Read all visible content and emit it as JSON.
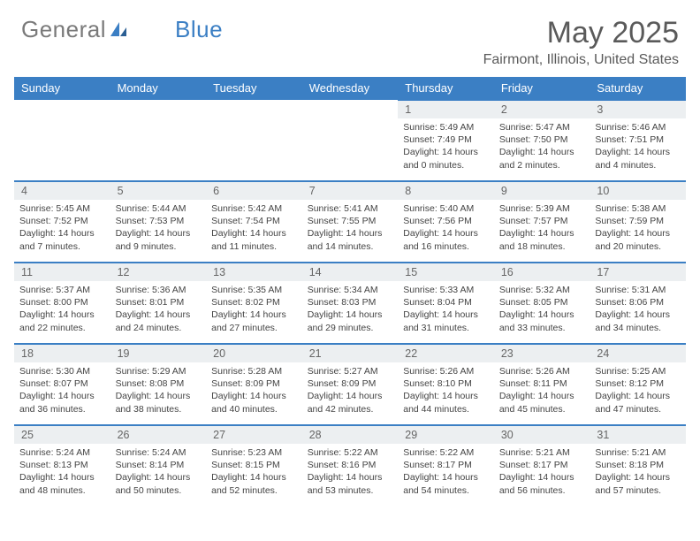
{
  "brand": {
    "name_a": "General",
    "name_b": "Blue"
  },
  "title": "May 2025",
  "location": "Fairmont, Illinois, United States",
  "colors": {
    "header_bg": "#3b7fc4",
    "header_text": "#ffffff",
    "daynum_bg": "#eceff1",
    "border": "#3b7fc4",
    "text": "#444444",
    "brand_gray": "#7a7a7a",
    "brand_blue": "#3b7fc4"
  },
  "weekdays": [
    "Sunday",
    "Monday",
    "Tuesday",
    "Wednesday",
    "Thursday",
    "Friday",
    "Saturday"
  ],
  "first_weekday_index": 4,
  "days": [
    {
      "n": 1,
      "sr": "5:49 AM",
      "ss": "7:49 PM",
      "dl": "14 hours and 0 minutes."
    },
    {
      "n": 2,
      "sr": "5:47 AM",
      "ss": "7:50 PM",
      "dl": "14 hours and 2 minutes."
    },
    {
      "n": 3,
      "sr": "5:46 AM",
      "ss": "7:51 PM",
      "dl": "14 hours and 4 minutes."
    },
    {
      "n": 4,
      "sr": "5:45 AM",
      "ss": "7:52 PM",
      "dl": "14 hours and 7 minutes."
    },
    {
      "n": 5,
      "sr": "5:44 AM",
      "ss": "7:53 PM",
      "dl": "14 hours and 9 minutes."
    },
    {
      "n": 6,
      "sr": "5:42 AM",
      "ss": "7:54 PM",
      "dl": "14 hours and 11 minutes."
    },
    {
      "n": 7,
      "sr": "5:41 AM",
      "ss": "7:55 PM",
      "dl": "14 hours and 14 minutes."
    },
    {
      "n": 8,
      "sr": "5:40 AM",
      "ss": "7:56 PM",
      "dl": "14 hours and 16 minutes."
    },
    {
      "n": 9,
      "sr": "5:39 AM",
      "ss": "7:57 PM",
      "dl": "14 hours and 18 minutes."
    },
    {
      "n": 10,
      "sr": "5:38 AM",
      "ss": "7:59 PM",
      "dl": "14 hours and 20 minutes."
    },
    {
      "n": 11,
      "sr": "5:37 AM",
      "ss": "8:00 PM",
      "dl": "14 hours and 22 minutes."
    },
    {
      "n": 12,
      "sr": "5:36 AM",
      "ss": "8:01 PM",
      "dl": "14 hours and 24 minutes."
    },
    {
      "n": 13,
      "sr": "5:35 AM",
      "ss": "8:02 PM",
      "dl": "14 hours and 27 minutes."
    },
    {
      "n": 14,
      "sr": "5:34 AM",
      "ss": "8:03 PM",
      "dl": "14 hours and 29 minutes."
    },
    {
      "n": 15,
      "sr": "5:33 AM",
      "ss": "8:04 PM",
      "dl": "14 hours and 31 minutes."
    },
    {
      "n": 16,
      "sr": "5:32 AM",
      "ss": "8:05 PM",
      "dl": "14 hours and 33 minutes."
    },
    {
      "n": 17,
      "sr": "5:31 AM",
      "ss": "8:06 PM",
      "dl": "14 hours and 34 minutes."
    },
    {
      "n": 18,
      "sr": "5:30 AM",
      "ss": "8:07 PM",
      "dl": "14 hours and 36 minutes."
    },
    {
      "n": 19,
      "sr": "5:29 AM",
      "ss": "8:08 PM",
      "dl": "14 hours and 38 minutes."
    },
    {
      "n": 20,
      "sr": "5:28 AM",
      "ss": "8:09 PM",
      "dl": "14 hours and 40 minutes."
    },
    {
      "n": 21,
      "sr": "5:27 AM",
      "ss": "8:09 PM",
      "dl": "14 hours and 42 minutes."
    },
    {
      "n": 22,
      "sr": "5:26 AM",
      "ss": "8:10 PM",
      "dl": "14 hours and 44 minutes."
    },
    {
      "n": 23,
      "sr": "5:26 AM",
      "ss": "8:11 PM",
      "dl": "14 hours and 45 minutes."
    },
    {
      "n": 24,
      "sr": "5:25 AM",
      "ss": "8:12 PM",
      "dl": "14 hours and 47 minutes."
    },
    {
      "n": 25,
      "sr": "5:24 AM",
      "ss": "8:13 PM",
      "dl": "14 hours and 48 minutes."
    },
    {
      "n": 26,
      "sr": "5:24 AM",
      "ss": "8:14 PM",
      "dl": "14 hours and 50 minutes."
    },
    {
      "n": 27,
      "sr": "5:23 AM",
      "ss": "8:15 PM",
      "dl": "14 hours and 52 minutes."
    },
    {
      "n": 28,
      "sr": "5:22 AM",
      "ss": "8:16 PM",
      "dl": "14 hours and 53 minutes."
    },
    {
      "n": 29,
      "sr": "5:22 AM",
      "ss": "8:17 PM",
      "dl": "14 hours and 54 minutes."
    },
    {
      "n": 30,
      "sr": "5:21 AM",
      "ss": "8:17 PM",
      "dl": "14 hours and 56 minutes."
    },
    {
      "n": 31,
      "sr": "5:21 AM",
      "ss": "8:18 PM",
      "dl": "14 hours and 57 minutes."
    }
  ],
  "labels": {
    "sunrise": "Sunrise:",
    "sunset": "Sunset:",
    "daylight": "Daylight:"
  }
}
